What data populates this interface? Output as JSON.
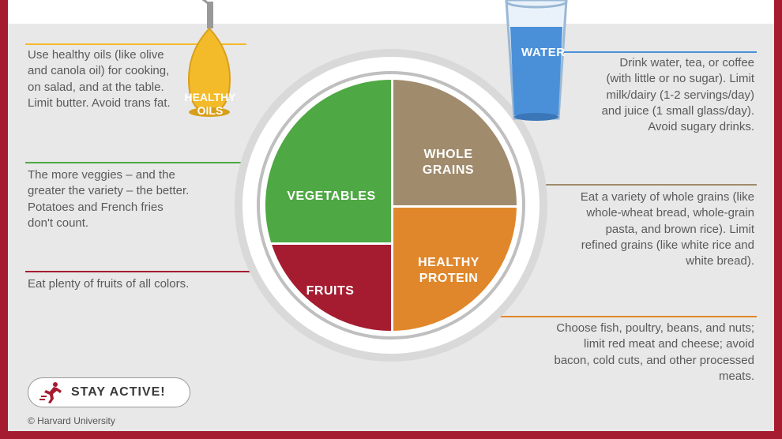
{
  "colors": {
    "frame": "#a51c30",
    "background": "#e8e8e8",
    "plate_outer": "#d9d9d9",
    "plate_mid": "#ffffff",
    "plate_ring": "#bfbfbf",
    "vegetables": "#4ea843",
    "whole_grains": "#a08b6d",
    "fruits": "#a51c30",
    "healthy_protein": "#e0872b",
    "healthy_oils": "#f3bb2a",
    "water": "#4a90d9",
    "text": "#5a5a5a",
    "rule_oils": "#f3bb2a",
    "rule_veg": "#4ea843",
    "rule_fruits": "#a51c30",
    "rule_water": "#4a90d9",
    "rule_grains": "#a08b6d",
    "rule_protein": "#e0872b"
  },
  "plate": {
    "type": "segmented-pie",
    "sections": {
      "vegetables": {
        "label": "VEGETABLES",
        "approx_area_pct": 35
      },
      "whole_grains": {
        "label": "WHOLE\nGRAINS",
        "approx_area_pct": 25
      },
      "fruits": {
        "label": "FRUITS",
        "approx_area_pct": 15
      },
      "healthy_protein": {
        "label": "HEALTHY\nPROTEIN",
        "approx_area_pct": 25
      }
    }
  },
  "side_items": {
    "healthy_oils": {
      "label": "HEALTHY\nOILS"
    },
    "water": {
      "label": "WATER"
    }
  },
  "notes": {
    "oils": "Use healthy oils (like olive and canola oil) for cooking, on salad, and at the table. Limit butter. Avoid trans fat.",
    "vegetables": "The more veggies – and the greater the variety – the better. Potatoes and French fries don't count.",
    "fruits": "Eat plenty of fruits of all colors.",
    "water": "Drink water, tea, or coffee (with little or no sugar). Limit milk/dairy (1-2 servings/day) and juice (1 small glass/day). Avoid sugary drinks.",
    "grains": "Eat a variety of whole grains (like whole-wheat bread, whole-grain pasta, and brown rice). Limit refined grains (like white rice and white bread).",
    "protein": "Choose fish, poultry, beans, and nuts;  limit red meat and cheese; avoid bacon, cold cuts,  and other processed meats."
  },
  "stay_active": {
    "label": "STAY ACTIVE!"
  },
  "credit": "© Harvard University"
}
